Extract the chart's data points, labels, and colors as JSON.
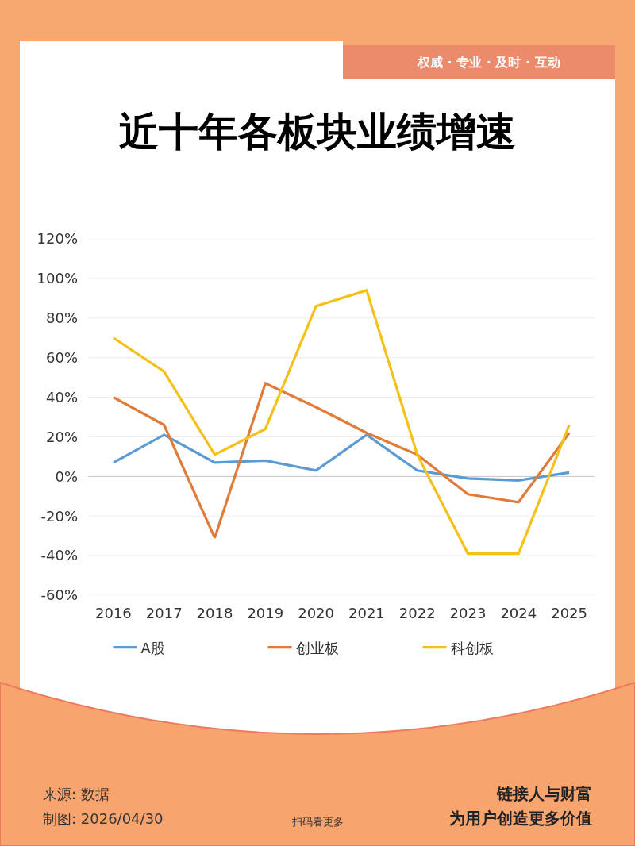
{
  "chart_data": {
    "type": "line",
    "title": "近十年各板块业绩增速",
    "categories": [
      "2016",
      "2017",
      "2018",
      "2019",
      "2020",
      "2021",
      "2022",
      "2023",
      "2024",
      "2025"
    ],
    "series": [
      {
        "name": "A股",
        "color": "#5b9bd5",
        "values": [
          7,
          21,
          7,
          8,
          3,
          21,
          3,
          -1,
          -2,
          2
        ]
      },
      {
        "name": "创业板",
        "color": "#e07b39",
        "values": [
          40,
          26,
          -31,
          47,
          35,
          22,
          11,
          -9,
          -13,
          22
        ]
      },
      {
        "name": "科创板",
        "color": "#f5c018",
        "values": [
          70,
          53,
          11,
          24,
          86,
          94,
          11,
          -39,
          -39,
          26
        ]
      }
    ],
    "ylim": [
      -60,
      120
    ],
    "yticks": [
      {
        "value": -60,
        "label": "-60%"
      },
      {
        "value": -40,
        "label": "-40%"
      },
      {
        "value": -20,
        "label": "-20%"
      },
      {
        "value": 0,
        "label": "0%"
      },
      {
        "value": 20,
        "label": "20%"
      },
      {
        "value": 40,
        "label": "40%"
      },
      {
        "value": 60,
        "label": "60%"
      },
      {
        "value": 80,
        "label": "80%"
      },
      {
        "value": 100,
        "label": "100%"
      },
      {
        "value": 120,
        "label": "120%"
      }
    ],
    "grid": "y",
    "legend": "bottom",
    "marker": "none",
    "line_style": "solid",
    "annotations": [
      "权威 · 专业 · 及时 · 互动",
      "来源: 数据",
      "制图: 2026/04/30",
      "扫码看更多",
      "链接人与财富",
      "为用户创造更多价值"
    ]
  }
}
